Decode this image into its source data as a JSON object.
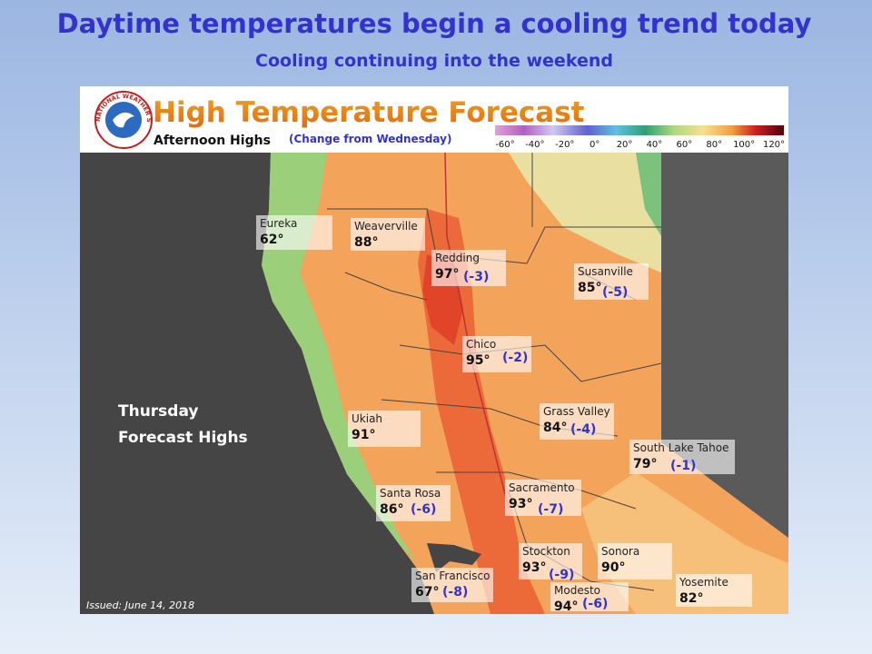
{
  "title": "Daytime temperatures begin a cooling trend today",
  "subtitle": "Cooling continuing into the weekend",
  "map": {
    "title": "High Temperature Forecast",
    "subtitle": "Afternoon Highs",
    "note": "(Change from Wednesday)",
    "logo_text": "NATIONAL WEATHER SERVICE",
    "scale_labels": [
      "-60°",
      "-40°",
      "-20°",
      "0°",
      "20°",
      "40°",
      "60°",
      "80°",
      "100°",
      "120°"
    ],
    "day_label": [
      "Thursday",
      "Forecast Highs"
    ],
    "issued": "Issued: June 14, 2018",
    "cities": [
      {
        "name": "Eureka",
        "high": "62°"
      },
      {
        "name": "Weaverville",
        "high": "88°"
      },
      {
        "name": "Redding",
        "high": "97°",
        "change": "(-3)"
      },
      {
        "name": "Susanville",
        "high": "85°",
        "change": "(-5)"
      },
      {
        "name": "Chico",
        "high": "95°",
        "change": "(-2)"
      },
      {
        "name": "Ukiah",
        "high": "91°"
      },
      {
        "name": "Grass Valley",
        "high": "84°",
        "change": "(-4)"
      },
      {
        "name": "South Lake Tahoe",
        "high": "79°",
        "change": "(-1)"
      },
      {
        "name": "Santa Rosa",
        "high": "86°",
        "change": "(-6)"
      },
      {
        "name": "Sacramento",
        "high": "93°",
        "change": "(-7)"
      },
      {
        "name": "San Francisco",
        "high": "67°",
        "change": "(-8)"
      },
      {
        "name": "Stockton",
        "high": "93°",
        "change": "(-9)"
      },
      {
        "name": "Sonora",
        "high": "90°"
      },
      {
        "name": "Modesto",
        "high": "94°",
        "change": "(-6)"
      },
      {
        "name": "Yosemite",
        "high": "82°"
      }
    ]
  }
}
